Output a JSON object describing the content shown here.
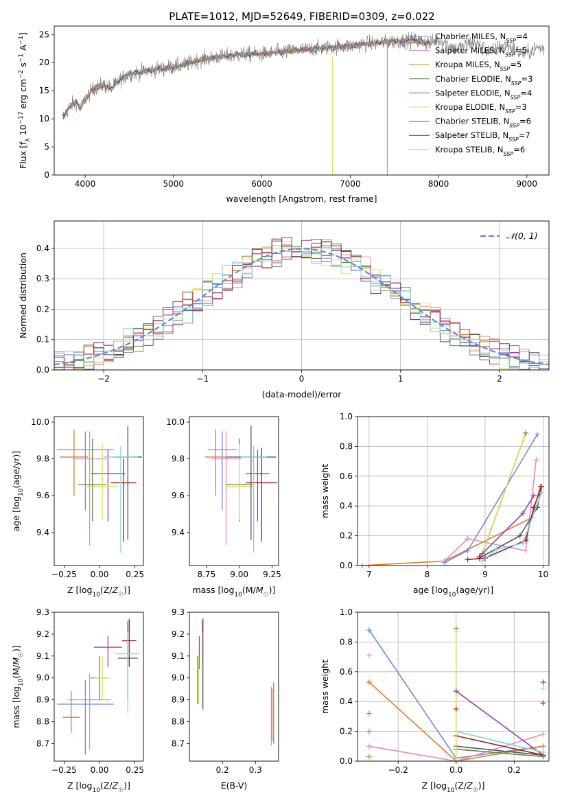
{
  "figure": {
    "title": "PLATE=1012, MJD=52649, FIBERID=0309, z=0.022"
  },
  "colors": {
    "Chabrier MILES": "#6a8fd6",
    "Salpeter MILES": "#e38bbd",
    "Kroupa MILES": "#e07b2a",
    "Chabrier ELODIE": "#5c8a4a",
    "Salpeter ELODIE": "#9b3bb0",
    "Kroupa ELODIE": "#d9e35a",
    "Chabrier STELIB": "#555555",
    "Salpeter STELIB": "#a71818",
    "Kroupa STELIB": "#7bd3e3",
    "normal_curve": "#5b8bd4",
    "grid": "#b0b0b0"
  },
  "chart_data": [
    {
      "id": "spectrum",
      "type": "line",
      "title": "PLATE=1012, MJD=52649, FIBERID=0309, z=0.022",
      "xlabel": "wavelength [Angstrom, rest frame]",
      "ylabel": "Flux [f_λ 10^-17 erg cm^-2 s^-1 A^-1]",
      "xlim": [
        3650,
        9250
      ],
      "ylim": [
        0,
        26.5
      ],
      "xticks": [
        4000,
        5000,
        6000,
        7000,
        8000,
        9000
      ],
      "yticks": [
        0,
        5,
        10,
        15,
        20,
        25
      ],
      "grid": false,
      "legend_position": "right",
      "legend": [
        {
          "model": "Chabrier MILES",
          "label": "Chabrier MILES, N",
          "sub": "SSP",
          "tail": "=4"
        },
        {
          "model": "Salpeter MILES",
          "label": "Salpeter MILES, N",
          "sub": "SSP",
          "tail": "=5"
        },
        {
          "model": "Kroupa MILES",
          "label": "Kroupa MILES, N",
          "sub": "SSP",
          "tail": "=5"
        },
        {
          "model": "Chabrier ELODIE",
          "label": "Chabrier ELODIE, N",
          "sub": "SSP",
          "tail": "=3"
        },
        {
          "model": "Salpeter ELODIE",
          "label": "Salpeter ELODIE, N",
          "sub": "SSP",
          "tail": "=4"
        },
        {
          "model": "Kroupa ELODIE",
          "label": "Kroupa ELODIE, N",
          "sub": "SSP",
          "tail": "=3"
        },
        {
          "model": "Chabrier STELIB",
          "label": "Chabrier STELIB, N",
          "sub": "SSP",
          "tail": "=6"
        },
        {
          "model": "Salpeter STELIB",
          "label": "Salpeter STELIB, N",
          "sub": "SSP",
          "tail": "=7"
        },
        {
          "model": "Kroupa STELIB",
          "label": "Kroupa STELIB, N",
          "sub": "SSP",
          "tail": "=6"
        }
      ],
      "continuum": {
        "x": [
          3740,
          3800,
          3850,
          3900,
          3950,
          4000,
          4100,
          4200,
          4300,
          4400,
          4500,
          4700,
          4900,
          5100,
          5300,
          5500,
          5800,
          6000,
          6300,
          6600,
          7000,
          7300,
          7500,
          7700,
          7900
        ],
        "y": [
          10,
          11.5,
          12.5,
          13,
          11.8,
          13.5,
          15.5,
          16,
          15.5,
          17,
          18,
          18.5,
          19,
          19.5,
          20.5,
          21,
          21.5,
          21.5,
          22,
          22.5,
          23,
          23.5,
          23.8,
          24,
          23.5
        ]
      },
      "model_x_range": [
        3750,
        7900
      ],
      "data_x_range": [
        3740,
        9200
      ]
    },
    {
      "id": "residuals",
      "type": "histogram",
      "xlabel": "(data-model)/error",
      "ylabel": "Normed distribution",
      "xlim": [
        -2.5,
        2.5
      ],
      "ylim": [
        0,
        0.49
      ],
      "xticks": [
        -2,
        -1,
        0,
        1,
        2
      ],
      "yticks": [
        0.0,
        0.1,
        0.2,
        0.3,
        0.4
      ],
      "grid": true,
      "legend_position": "top-right",
      "legend": [
        {
          "label": "𝒩(0, 1)"
        }
      ],
      "bin_width": 0.1
    },
    {
      "id": "age_vs_Z",
      "type": "errorbar",
      "xlabel": "Z [log10(Z/Z☉)]",
      "ylabel": "age [log10(age/yr)]",
      "xlim": [
        -0.32,
        0.31
      ],
      "ylim": [
        9.22,
        10.03
      ],
      "xticks": [
        -0.25,
        0.0,
        0.25
      ],
      "yticks": [
        9.4,
        9.6,
        9.8,
        10.0
      ],
      "grid": false,
      "points": [
        {
          "model": "Chabrier MILES",
          "x": -0.1,
          "xerr": 0.2,
          "y": 9.85,
          "yerr_lo": 0.33,
          "yerr_hi": 0.1
        },
        {
          "model": "Salpeter MILES",
          "x": -0.07,
          "xerr": 0.12,
          "y": 9.8,
          "yerr_lo": 0.47,
          "yerr_hi": 0.15
        },
        {
          "model": "Kroupa MILES",
          "x": -0.18,
          "xerr": 0.1,
          "y": 9.81,
          "yerr_lo": 0.21,
          "yerr_hi": 0.15
        },
        {
          "model": "Chabrier ELODIE",
          "x": -0.05,
          "xerr": 0.1,
          "y": 9.66,
          "yerr_lo": 0.2,
          "yerr_hi": 0.25
        },
        {
          "model": "Salpeter ELODIE",
          "x": 0.06,
          "xerr": 0.12,
          "y": 9.72,
          "yerr_lo": 0.26,
          "yerr_hi": 0.13
        },
        {
          "model": "Kroupa ELODIE",
          "x": 0.02,
          "xerr": 0.11,
          "y": 9.65,
          "yerr_lo": 0.18,
          "yerr_hi": 0.23
        },
        {
          "model": "Chabrier STELIB",
          "x": 0.2,
          "xerr": 0.1,
          "y": 9.81,
          "yerr_lo": 0.45,
          "yerr_hi": 0.17
        },
        {
          "model": "Salpeter STELIB",
          "x": 0.17,
          "xerr": 0.09,
          "y": 9.67,
          "yerr_lo": 0.32,
          "yerr_hi": 0.13
        },
        {
          "model": "Kroupa STELIB",
          "x": 0.15,
          "xerr": 0.12,
          "y": 9.81,
          "yerr_lo": 0.52,
          "yerr_hi": 0.06
        }
      ]
    },
    {
      "id": "age_vs_mass",
      "type": "errorbar",
      "xlabel": "mass [log10(M/M☉)]",
      "ylabel": "",
      "xlim": [
        8.62,
        9.3
      ],
      "ylim": [
        9.22,
        10.03
      ],
      "xticks": [
        8.75,
        9.0,
        9.25
      ],
      "yticks": [
        9.4,
        9.6,
        9.8,
        10.0
      ],
      "grid": false,
      "points": [
        {
          "model": "Chabrier MILES",
          "x": 8.87,
          "xerr": 0.11,
          "y": 9.85,
          "yerr_lo": 0.33,
          "yerr_hi": 0.1
        },
        {
          "model": "Salpeter MILES",
          "x": 8.9,
          "xerr": 0.12,
          "y": 9.8,
          "yerr_lo": 0.47,
          "yerr_hi": 0.15
        },
        {
          "model": "Kroupa MILES",
          "x": 8.82,
          "xerr": 0.08,
          "y": 9.81,
          "yerr_lo": 0.21,
          "yerr_hi": 0.15
        },
        {
          "model": "Chabrier ELODIE",
          "x": 9.0,
          "xerr": 0.1,
          "y": 9.66,
          "yerr_lo": 0.2,
          "yerr_hi": 0.25
        },
        {
          "model": "Salpeter ELODIE",
          "x": 9.14,
          "xerr": 0.09,
          "y": 9.72,
          "yerr_lo": 0.26,
          "yerr_hi": 0.13
        },
        {
          "model": "Kroupa ELODIE",
          "x": 9.0,
          "xerr": 0.1,
          "y": 9.65,
          "yerr_lo": 0.18,
          "yerr_hi": 0.23
        },
        {
          "model": "Chabrier STELIB",
          "x": 9.09,
          "xerr": 0.19,
          "y": 9.81,
          "yerr_lo": 0.45,
          "yerr_hi": 0.17
        },
        {
          "model": "Salpeter STELIB",
          "x": 9.17,
          "xerr": 0.12,
          "y": 9.67,
          "yerr_lo": 0.32,
          "yerr_hi": 0.19
        },
        {
          "model": "Kroupa STELIB",
          "x": 9.11,
          "xerr": 0.1,
          "y": 9.81,
          "yerr_lo": 0.52,
          "yerr_hi": 0.06
        }
      ]
    },
    {
      "id": "weight_vs_age",
      "type": "line",
      "xlabel": "age [log10(age/yr)]",
      "ylabel": "mass weight",
      "xlim": [
        6.8,
        10.1
      ],
      "ylim": [
        0,
        1.0
      ],
      "xticks": [
        7,
        8,
        9,
        10
      ],
      "yticks": [
        0.0,
        0.2,
        0.4,
        0.6,
        0.8,
        1.0
      ],
      "grid": true,
      "series": [
        {
          "model": "Kroupa MILES",
          "x": [
            6.88,
            8.3,
            9.8,
            9.95
          ],
          "y": [
            0.0,
            0.03,
            0.32,
            0.53
          ]
        },
        {
          "model": "Chabrier MILES",
          "x": [
            8.3,
            8.7,
            9.9
          ],
          "y": [
            0.02,
            0.1,
            0.88
          ]
        },
        {
          "model": "Salpeter MILES",
          "x": [
            8.3,
            8.7,
            9.7,
            9.88
          ],
          "y": [
            0.03,
            0.18,
            0.1,
            0.71
          ]
        },
        {
          "model": "Chabrier ELODIE",
          "x": [
            8.95,
            9.7
          ],
          "y": [
            0.08,
            0.89
          ]
        },
        {
          "model": "Kroupa ELODIE",
          "x": [
            8.92,
            9.68
          ],
          "y": [
            0.05,
            0.87
          ]
        },
        {
          "model": "Salpeter ELODIE",
          "x": [
            8.9,
            9.65,
            9.84
          ],
          "y": [
            0.06,
            0.35,
            0.47
          ]
        },
        {
          "model": "Chabrier STELIB",
          "x": [
            8.9,
            9.6,
            9.9,
            9.97
          ],
          "y": [
            0.05,
            0.2,
            0.39,
            0.53
          ]
        },
        {
          "model": "Salpeter STELIB",
          "x": [
            8.7,
            9.0,
            9.7,
            9.84,
            9.97
          ],
          "y": [
            0.04,
            0.05,
            0.17,
            0.39,
            0.53
          ]
        },
        {
          "model": "Kroupa STELIB",
          "x": [
            8.95,
            9.2,
            9.65,
            9.97
          ],
          "y": [
            0.03,
            0.11,
            0.15,
            0.49
          ]
        }
      ]
    },
    {
      "id": "mass_vs_Z",
      "type": "errorbar",
      "xlabel": "Z [log10(Z/Z☉)]",
      "ylabel": "mass [log10(M/M☉)]",
      "xlim": [
        -0.32,
        0.31
      ],
      "ylim": [
        8.62,
        9.3
      ],
      "xticks": [
        -0.25,
        0.0,
        0.25
      ],
      "yticks": [
        8.7,
        8.8,
        8.9,
        9.0,
        9.1,
        9.2,
        9.3
      ],
      "grid": false,
      "points": [
        {
          "model": "Chabrier MILES",
          "x": -0.1,
          "xerr": 0.2,
          "y": 8.88,
          "yerr_lo": 0.23,
          "yerr_hi": 0.11
        },
        {
          "model": "Salpeter MILES",
          "x": -0.07,
          "xerr": 0.15,
          "y": 8.9,
          "yerr_lo": 0.23,
          "yerr_hi": 0.12
        },
        {
          "model": "Kroupa MILES",
          "x": -0.2,
          "xerr": 0.06,
          "y": 8.82,
          "yerr_lo": 0.07,
          "yerr_hi": 0.12
        },
        {
          "model": "Chabrier ELODIE",
          "x": 0.0,
          "xerr": 0.06,
          "y": 9.0,
          "yerr_lo": 0.1,
          "yerr_hi": 0.1
        },
        {
          "model": "Salpeter ELODIE",
          "x": 0.06,
          "xerr": 0.1,
          "y": 9.14,
          "yerr_lo": 0.09,
          "yerr_hi": 0.05
        },
        {
          "model": "Kroupa ELODIE",
          "x": 0.02,
          "xerr": 0.06,
          "y": 9.0,
          "yerr_lo": 0.1,
          "yerr_hi": 0.1
        },
        {
          "model": "Chabrier STELIB",
          "x": 0.2,
          "xerr": 0.07,
          "y": 9.09,
          "yerr_lo": 0.19,
          "yerr_hi": 0.17
        },
        {
          "model": "Salpeter STELIB",
          "x": 0.21,
          "xerr": 0.05,
          "y": 9.17,
          "yerr_lo": 0.12,
          "yerr_hi": 0.1
        },
        {
          "model": "Kroupa STELIB",
          "x": 0.2,
          "xerr": 0.08,
          "y": 9.11,
          "yerr_lo": 0.27,
          "yerr_hi": 0.1
        }
      ]
    },
    {
      "id": "mass_vs_ebv",
      "type": "errorbar",
      "xlabel": "E(B-V)",
      "ylabel": "",
      "xlim": [
        0.1,
        0.37
      ],
      "ylim": [
        8.62,
        9.3
      ],
      "xticks": [
        0.2,
        0.3
      ],
      "yticks": [
        8.7,
        8.8,
        8.9,
        9.0,
        9.1,
        9.2,
        9.3
      ],
      "grid": false,
      "points": [
        {
          "model": "Chabrier MILES",
          "x": 0.355,
          "y": 8.85,
          "yerr_lo": 0.15,
          "yerr_hi": 0.13
        },
        {
          "model": "Salpeter MILES",
          "x": 0.348,
          "y": 8.82,
          "yerr_lo": 0.13,
          "yerr_hi": 0.14
        },
        {
          "model": "Kroupa MILES",
          "x": 0.35,
          "y": 8.83,
          "yerr_lo": 0.12,
          "yerr_hi": 0.12
        },
        {
          "model": "Chabrier ELODIE",
          "x": 0.125,
          "y": 9.0,
          "yerr_lo": 0.12,
          "yerr_hi": 0.1
        },
        {
          "model": "Salpeter ELODIE",
          "x": 0.13,
          "y": 9.14,
          "yerr_lo": 0.1,
          "yerr_hi": 0.05
        },
        {
          "model": "Kroupa ELODIE",
          "x": 0.128,
          "y": 9.0,
          "yerr_lo": 0.12,
          "yerr_hi": 0.1
        },
        {
          "model": "Chabrier STELIB",
          "x": 0.14,
          "y": 9.09,
          "yerr_lo": 0.23,
          "yerr_hi": 0.17
        },
        {
          "model": "Salpeter STELIB",
          "x": 0.141,
          "y": 9.17,
          "yerr_lo": 0.1,
          "yerr_hi": 0.1
        },
        {
          "model": "Kroupa STELIB",
          "x": 0.142,
          "y": 9.11,
          "yerr_lo": 0.26,
          "yerr_hi": 0.1
        }
      ]
    },
    {
      "id": "weight_vs_Z",
      "type": "line",
      "xlabel": "Z [log10(Z/Z☉)]",
      "ylabel": "mass weight",
      "xlim": [
        -0.34,
        0.32
      ],
      "ylim": [
        0,
        1.0
      ],
      "xticks": [
        -0.2,
        0.0,
        0.2
      ],
      "yticks": [
        0.0,
        0.2,
        0.4,
        0.6,
        0.8,
        1.0
      ],
      "grid": true,
      "series": [
        {
          "model": "Chabrier MILES",
          "x": [
            -0.3,
            0.0,
            0.3
          ],
          "y": [
            0.88,
            0.02,
            0.1
          ]
        },
        {
          "model": "Kroupa MILES",
          "x": [
            -0.3,
            0.0,
            0.3
          ],
          "y": [
            0.53,
            0.0,
            0.1
          ]
        },
        {
          "model": "Salpeter MILES",
          "x": [
            -0.3,
            0.0,
            0.3
          ],
          "y": [
            0.1,
            0.0,
            0.18
          ]
        },
        {
          "model": "Salpeter ELODIE",
          "x": [
            0.0,
            0.3
          ],
          "y": [
            0.47,
            0.04
          ]
        },
        {
          "model": "Chabrier STELIB",
          "x": [
            0.0,
            0.3
          ],
          "y": [
            0.1,
            0.04
          ]
        },
        {
          "model": "Salpeter STELIB",
          "x": [
            0.0,
            0.3
          ],
          "y": [
            0.17,
            0.04
          ]
        },
        {
          "model": "Kroupa STELIB",
          "x": [
            0.0,
            0.3
          ],
          "y": [
            0.2,
            0.06
          ]
        },
        {
          "model": "Chabrier ELODIE",
          "x": [
            0.0,
            0.3
          ],
          "y": [
            0.08,
            0.03
          ]
        },
        {
          "model": "Kroupa ELODIE",
          "x": [
            0.0,
            0.0
          ],
          "y": [
            0.0,
            0.87
          ]
        }
      ],
      "markers": [
        {
          "model": "Chabrier MILES",
          "x": -0.3,
          "y": 0.88
        },
        {
          "model": "Salpeter MILES",
          "x": -0.3,
          "y": 0.71
        },
        {
          "model": "Kroupa MILES",
          "x": -0.3,
          "y": 0.53
        },
        {
          "model": "Kroupa MILES",
          "x": -0.3,
          "y": 0.32
        },
        {
          "model": "Kroupa MILES",
          "x": -0.3,
          "y": 0.2
        },
        {
          "model": "Kroupa MILES",
          "x": -0.3,
          "y": 0.03
        },
        {
          "model": "Chabrier ELODIE",
          "x": 0.0,
          "y": 0.89
        },
        {
          "model": "Kroupa ELODIE",
          "x": 0.0,
          "y": 0.87
        },
        {
          "model": "Salpeter ELODIE",
          "x": 0.0,
          "y": 0.47
        },
        {
          "model": "Salpeter STELIB",
          "x": 0.0,
          "y": 0.35
        },
        {
          "model": "Chabrier STELIB",
          "x": 0.3,
          "y": 0.53
        },
        {
          "model": "Kroupa STELIB",
          "x": 0.3,
          "y": 0.49
        },
        {
          "model": "Salpeter STELIB",
          "x": 0.3,
          "y": 0.39
        }
      ]
    }
  ]
}
